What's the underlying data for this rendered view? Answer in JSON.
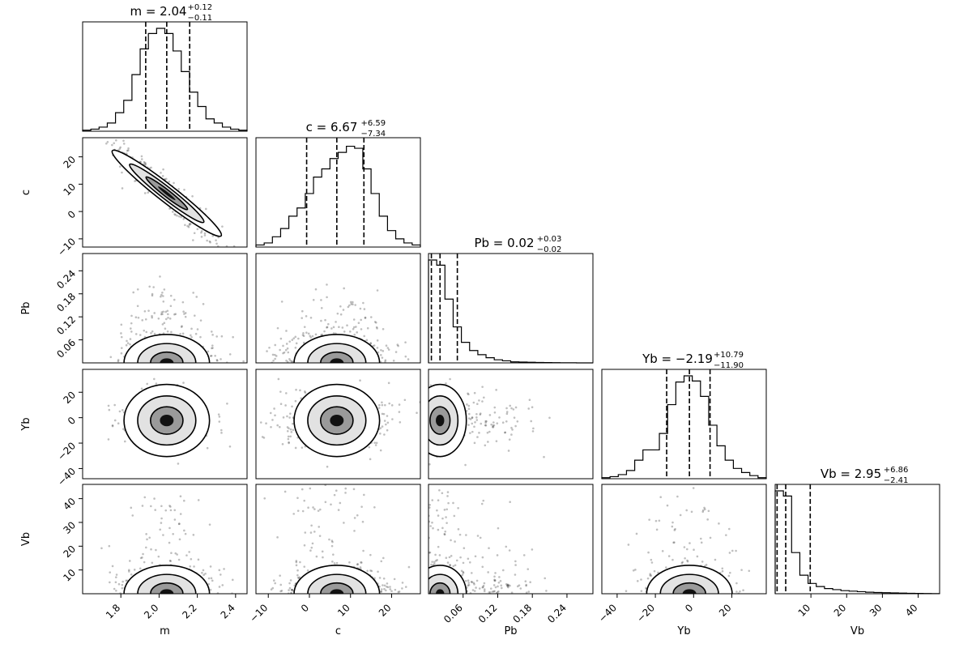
{
  "chart_data": {
    "type": "corner",
    "params": [
      {
        "name": "m",
        "median": 2.04,
        "plus": "+0.12",
        "minus": "−0.11",
        "title": "m = 2.04",
        "q16": 1.93,
        "q84": 2.16,
        "range": [
          1.6,
          2.46
        ],
        "ticks": [
          1.8,
          2.0,
          2.2,
          2.4
        ],
        "tick_labels": [
          "1.8",
          "2.0",
          "2.2",
          "2.4"
        ],
        "xlabel": "m",
        "ylabel": "",
        "hist": [
          0.01,
          0.02,
          0.04,
          0.08,
          0.18,
          0.3,
          0.55,
          0.8,
          0.95,
          1.0,
          0.95,
          0.78,
          0.58,
          0.38,
          0.24,
          0.12,
          0.08,
          0.04,
          0.02,
          0.01
        ]
      },
      {
        "name": "c",
        "median": 6.67,
        "plus": "+6.59",
        "minus": "−7.34",
        "title": "c = 6.67",
        "q16": -0.67,
        "q84": 13.26,
        "range": [
          -13.0,
          27.0
        ],
        "ticks": [
          -10,
          0,
          10,
          20
        ],
        "tick_labels": [
          "−10",
          "0",
          "10",
          "20"
        ],
        "xlabel": "c",
        "ylabel": "c",
        "hist": [
          0.02,
          0.04,
          0.1,
          0.18,
          0.3,
          0.38,
          0.52,
          0.68,
          0.76,
          0.86,
          0.92,
          0.98,
          0.96,
          0.76,
          0.52,
          0.3,
          0.16,
          0.08,
          0.04,
          0.02
        ]
      },
      {
        "name": "Pb",
        "median": 0.02,
        "plus": "+0.03",
        "minus": "−0.02",
        "title": "Pb = 0.02",
        "q16": 0.005,
        "q84": 0.05,
        "range": [
          0.0,
          0.285
        ],
        "ticks": [
          0.06,
          0.12,
          0.18,
          0.24
        ],
        "tick_labels": [
          "0.06",
          "0.12",
          "0.18",
          "0.24"
        ],
        "xlabel": "Pb",
        "ylabel": "Pb",
        "hist": [
          1.0,
          0.95,
          0.62,
          0.35,
          0.2,
          0.12,
          0.08,
          0.05,
          0.03,
          0.02,
          0.01,
          0.008,
          0.006,
          0.004,
          0.003,
          0.002,
          0.001,
          0.001,
          0.0,
          0.0
        ]
      },
      {
        "name": "Yb",
        "median": -2.19,
        "plus": "+10.79",
        "minus": "−11.90",
        "title": "Yb = −2.19",
        "q16": -14.09,
        "q84": 8.6,
        "range": [
          -48.0,
          38.0
        ],
        "ticks": [
          -40,
          -20,
          0,
          20
        ],
        "tick_labels": [
          "−40",
          "−20",
          "0",
          "20"
        ],
        "xlabel": "Yb",
        "ylabel": "Yb",
        "hist": [
          0.01,
          0.02,
          0.04,
          0.08,
          0.18,
          0.28,
          0.28,
          0.44,
          0.72,
          0.94,
          1.0,
          0.95,
          0.8,
          0.52,
          0.32,
          0.18,
          0.1,
          0.06,
          0.03,
          0.01
        ]
      },
      {
        "name": "Vb",
        "median": 2.95,
        "plus": "+6.86",
        "minus": "−2.41",
        "title": "Vb = 2.95",
        "q16": 0.54,
        "q84": 9.81,
        "range": [
          0.0,
          46.0
        ],
        "ticks": [
          10,
          20,
          30,
          40
        ],
        "tick_labels": [
          "10",
          "20",
          "30",
          "40"
        ],
        "xlabel": "Vb",
        "ylabel": "Vb",
        "hist": [
          1.0,
          0.95,
          0.4,
          0.18,
          0.1,
          0.07,
          0.05,
          0.04,
          0.03,
          0.025,
          0.02,
          0.015,
          0.012,
          0.01,
          0.008,
          0.006,
          0.004,
          0.003,
          0.002,
          0.001
        ]
      }
    ],
    "yticks": [
      {
        "row": 1,
        "ticks": [
          -10,
          0,
          10,
          20
        ],
        "tick_labels": [
          "−10",
          "0",
          "10",
          "20"
        ],
        "range": [
          -13.0,
          27.0
        ]
      },
      {
        "row": 2,
        "ticks": [
          0.06,
          0.12,
          0.18,
          0.24
        ],
        "tick_labels": [
          "0.06",
          "0.12",
          "0.18",
          "0.24"
        ],
        "range": [
          0.0,
          0.285
        ]
      },
      {
        "row": 3,
        "ticks": [
          -40,
          -20,
          0,
          20
        ],
        "tick_labels": [
          "−40",
          "−20",
          "0",
          "20"
        ],
        "range": [
          -48.0,
          38.0
        ]
      },
      {
        "row": 4,
        "ticks": [
          10,
          20,
          30,
          40
        ],
        "tick_labels": [
          "10",
          "20",
          "30",
          "40"
        ],
        "range": [
          0.0,
          46.0
        ]
      }
    ],
    "quantile_lines": "dashed",
    "contours": "filled density with 3 levels",
    "grid": false,
    "legend": "none"
  },
  "colors": {
    "ink": "#000000",
    "background": "#ffffff",
    "scatter": "#000000"
  }
}
